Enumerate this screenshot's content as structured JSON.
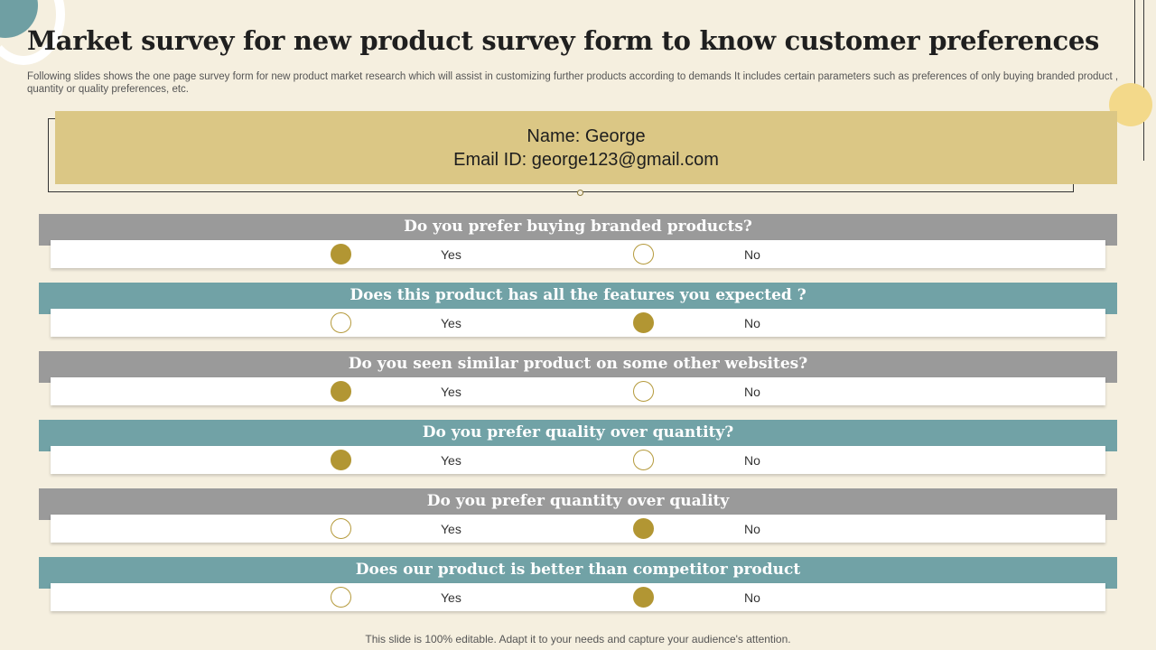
{
  "slide": {
    "title": "Market survey for new product survey form to know customer preferences",
    "subtitle": "Following slides shows the one page survey form for new product market research which will assist in customizing further products according to demands It includes certain parameters such as preferences of only buying branded product , quantity or quality preferences, etc.",
    "footer": "This slide is 100% editable. Adapt it to your needs and capture your audience's attention."
  },
  "respondent": {
    "name_line": "Name:  George",
    "email_line": "Email ID: george123@gmail.com"
  },
  "colors": {
    "background": "#f5efdf",
    "info_box": "#dbc785",
    "question_gray": "#9a9a9a",
    "question_teal": "#71a2a6",
    "radio_gold": "#b29633"
  },
  "questions": [
    {
      "text": "Do you prefer buying branded products?",
      "style": "gray",
      "yes_label": "Yes",
      "no_label": "No",
      "selected": "yes"
    },
    {
      "text": "Does this product has all the features you expected ?",
      "style": "teal",
      "yes_label": "Yes",
      "no_label": "No",
      "selected": "no"
    },
    {
      "text": "Do you seen similar product on some other websites?",
      "style": "gray",
      "yes_label": "Yes",
      "no_label": "No",
      "selected": "yes"
    },
    {
      "text": "Do you prefer quality over quantity?",
      "style": "teal",
      "yes_label": "Yes",
      "no_label": "No",
      "selected": "yes"
    },
    {
      "text": "Do you prefer  quantity over quality",
      "style": "gray",
      "yes_label": "Yes",
      "no_label": "No",
      "selected": "no"
    },
    {
      "text": "Does our product is better than competitor product",
      "style": "teal",
      "yes_label": "Yes",
      "no_label": "No",
      "selected": "no"
    }
  ]
}
